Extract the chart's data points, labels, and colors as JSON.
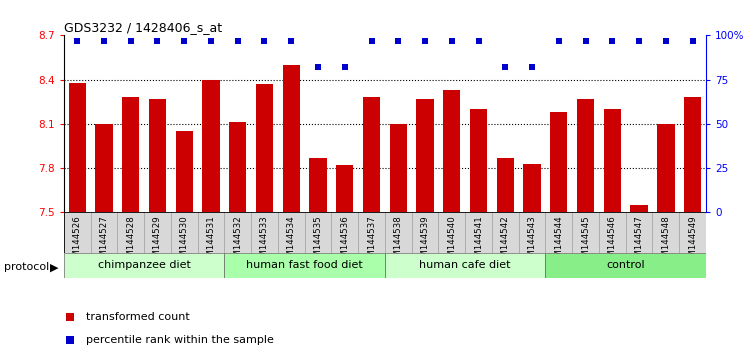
{
  "title": "GDS3232 / 1428406_s_at",
  "samples": [
    "GSM144526",
    "GSM144527",
    "GSM144528",
    "GSM144529",
    "GSM144530",
    "GSM144531",
    "GSM144532",
    "GSM144533",
    "GSM144534",
    "GSM144535",
    "GSM144536",
    "GSM144537",
    "GSM144538",
    "GSM144539",
    "GSM144540",
    "GSM144541",
    "GSM144542",
    "GSM144543",
    "GSM144544",
    "GSM144545",
    "GSM144546",
    "GSM144547",
    "GSM144548",
    "GSM144549"
  ],
  "bar_values": [
    8.38,
    8.1,
    8.28,
    8.27,
    8.05,
    8.4,
    8.11,
    8.37,
    8.5,
    7.87,
    7.82,
    8.28,
    8.1,
    8.27,
    8.33,
    8.2,
    7.87,
    7.83,
    8.18,
    8.27,
    8.2,
    7.55,
    8.1,
    8.28
  ],
  "percentile_values": [
    97,
    97,
    97,
    97,
    97,
    97,
    97,
    97,
    97,
    82,
    82,
    97,
    97,
    97,
    97,
    97,
    82,
    82,
    97,
    97,
    97,
    97,
    97,
    97
  ],
  "groups": [
    {
      "label": "chimpanzee diet",
      "start": 0,
      "end": 5,
      "color": "#ccffcc"
    },
    {
      "label": "human fast food diet",
      "start": 6,
      "end": 11,
      "color": "#aaffaa"
    },
    {
      "label": "human cafe diet",
      "start": 12,
      "end": 17,
      "color": "#ccffcc"
    },
    {
      "label": "control",
      "start": 18,
      "end": 23,
      "color": "#88ee88"
    }
  ],
  "ylim_left": [
    7.5,
    8.7
  ],
  "ylim_right": [
    0,
    100
  ],
  "yticks_left": [
    7.5,
    7.8,
    8.1,
    8.4,
    8.7
  ],
  "yticks_right": [
    0,
    25,
    50,
    75,
    100
  ],
  "bar_color": "#cc0000",
  "percentile_color": "#0000cc",
  "bar_width": 0.65,
  "plot_bg_color": "#ffffff",
  "gridline_color": "#000000",
  "cell_bg_color": "#d8d8d8",
  "group_colors": [
    "#ccffcc",
    "#aaffaa",
    "#ccffcc",
    "#88ee88"
  ]
}
